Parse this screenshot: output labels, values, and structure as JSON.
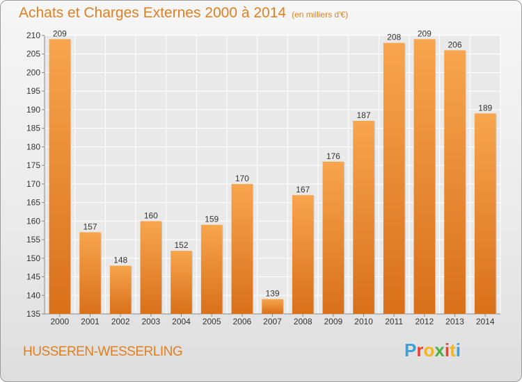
{
  "title": "Achats et Charges Externes 2000 à 2014",
  "subtitle": "(en milliers d'€)",
  "place": "HUSSEREN-WESSERLING",
  "logo": {
    "letters": [
      "P",
      "r",
      "o",
      "x",
      "i",
      "t",
      "i"
    ],
    "colors": [
      "#3aa0d8",
      "#e8412e",
      "#f5b41c",
      "#4caf3f",
      "#e8412e",
      "#f5b41c",
      "#3aa0d8"
    ]
  },
  "chart_data": {
    "type": "bar",
    "categories": [
      "2000",
      "2001",
      "2002",
      "2003",
      "2004",
      "2005",
      "2006",
      "2007",
      "2008",
      "2009",
      "2010",
      "2011",
      "2012",
      "2013",
      "2014"
    ],
    "values": [
      209,
      157,
      148,
      160,
      152,
      159,
      170,
      139,
      167,
      176,
      187,
      208,
      209,
      206,
      189
    ],
    "ylim": [
      135,
      210
    ],
    "yticks": [
      135,
      140,
      145,
      150,
      155,
      160,
      165,
      170,
      175,
      180,
      185,
      190,
      195,
      200,
      205,
      210
    ],
    "grid": true,
    "bar_color": "#f08c2e"
  }
}
